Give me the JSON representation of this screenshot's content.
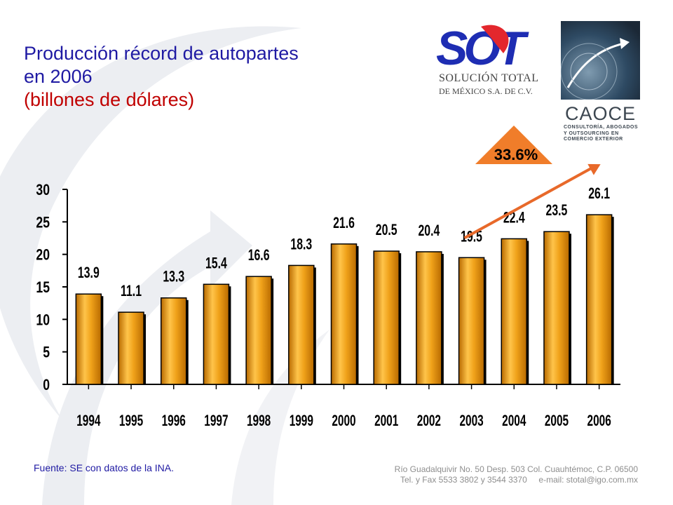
{
  "title": {
    "line1": "Producción récord de autopartes",
    "line2": "en 2006",
    "subtitle": "(billones de dólares)"
  },
  "logos": {
    "sot_mark": "SOT",
    "sot_name_line1": "SOLUCIÓN TOTAL",
    "sot_name_line2": "DE MÉXICO S.A. DE C.V.",
    "caoce_name": "CAOCE",
    "caoce_sub_line1": "Consultoría, Abogados",
    "caoce_sub_line2": "y Outsourcing en",
    "caoce_sub_line3": "Comercio Exterior"
  },
  "growth_badge": "33.6%",
  "source": "Fuente: SE con datos de la INA.",
  "contact": {
    "line1": "Río Guadalquivir No. 50 Desp. 503 Col. Cuauhtémoc, C.P. 06500",
    "line2": "Tel. y Fax 5533 3802 y 3544 3370     e-mail: stotal@igo.com.mx"
  },
  "colors": {
    "title": "#1f1aa3",
    "subtitle": "#c00000",
    "bar": "#e08a00",
    "bar_highlight": "#ffc44a",
    "trend_arrow": "#e8692a",
    "badge": "#f07d2a"
  },
  "chart_data": {
    "type": "bar",
    "categories": [
      "1994",
      "1995",
      "1996",
      "1997",
      "1998",
      "1999",
      "2000",
      "2001",
      "2002",
      "2003",
      "2004",
      "2005",
      "2006"
    ],
    "values": [
      13.9,
      11.1,
      13.3,
      15.4,
      16.6,
      18.3,
      21.6,
      20.5,
      20.4,
      19.5,
      22.4,
      23.5,
      26.1
    ],
    "data_labels": [
      "13.9",
      "11.1",
      "13.3",
      "15.4",
      "16.6",
      "18.3",
      "21.6",
      "20.5",
      "20.4",
      "19.5",
      "22.4",
      "23.5",
      "26.1"
    ],
    "ylim": [
      0,
      30
    ],
    "yticks": [
      0,
      5,
      10,
      15,
      20,
      25,
      30
    ],
    "title": "Producción récord de autopartes en 2006",
    "xlabel": "",
    "ylabel": "",
    "grid": false,
    "trend_annotation": {
      "from": "2003",
      "to": "2006",
      "label": "33.6%"
    }
  }
}
